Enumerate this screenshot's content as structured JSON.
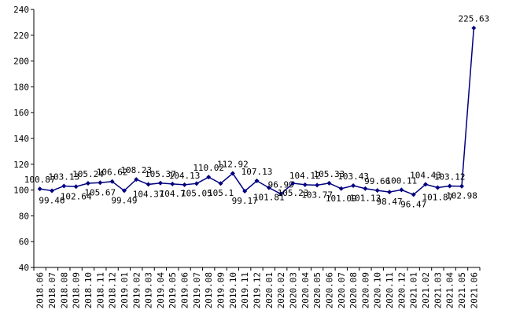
{
  "chart_data": {
    "type": "line",
    "categories": [
      "2018.06",
      "2018.07",
      "2018.08",
      "2018.09",
      "2018.10",
      "2018.11",
      "2018.12",
      "2019.01",
      "2019.02",
      "2019.03",
      "2019.04",
      "2019.05",
      "2019.06",
      "2019.07",
      "2019.08",
      "2019.09",
      "2019.10",
      "2019.11",
      "2019.12",
      "2020.01",
      "2020.02",
      "2020.03",
      "2020.04",
      "2020.05",
      "2020.06",
      "2020.07",
      "2020.08",
      "2020.09",
      "2020.10",
      "2020.11",
      "2020.12",
      "2021.01",
      "2021.02",
      "2021.03",
      "2021.04",
      "2021.05",
      "2021.06"
    ],
    "values": [
      100.87,
      99.46,
      103.13,
      102.64,
      105.24,
      105.67,
      106.62,
      99.49,
      108.23,
      104.37,
      105.37,
      104.7,
      104.13,
      105.05,
      110.02,
      105.1,
      112.92,
      99.17,
      107.13,
      101.81,
      96.99,
      105.23,
      104.12,
      103.77,
      105.33,
      101.09,
      103.43,
      101.13,
      99.66,
      98.47,
      100.11,
      96.47,
      104.43,
      101.87,
      103.12,
      102.98,
      225.63
    ],
    "color": "#000080",
    "ylim": [
      40,
      240
    ],
    "yticks": [
      40,
      60,
      80,
      100,
      120,
      140,
      160,
      180,
      200,
      220,
      240
    ],
    "grid": false
  }
}
